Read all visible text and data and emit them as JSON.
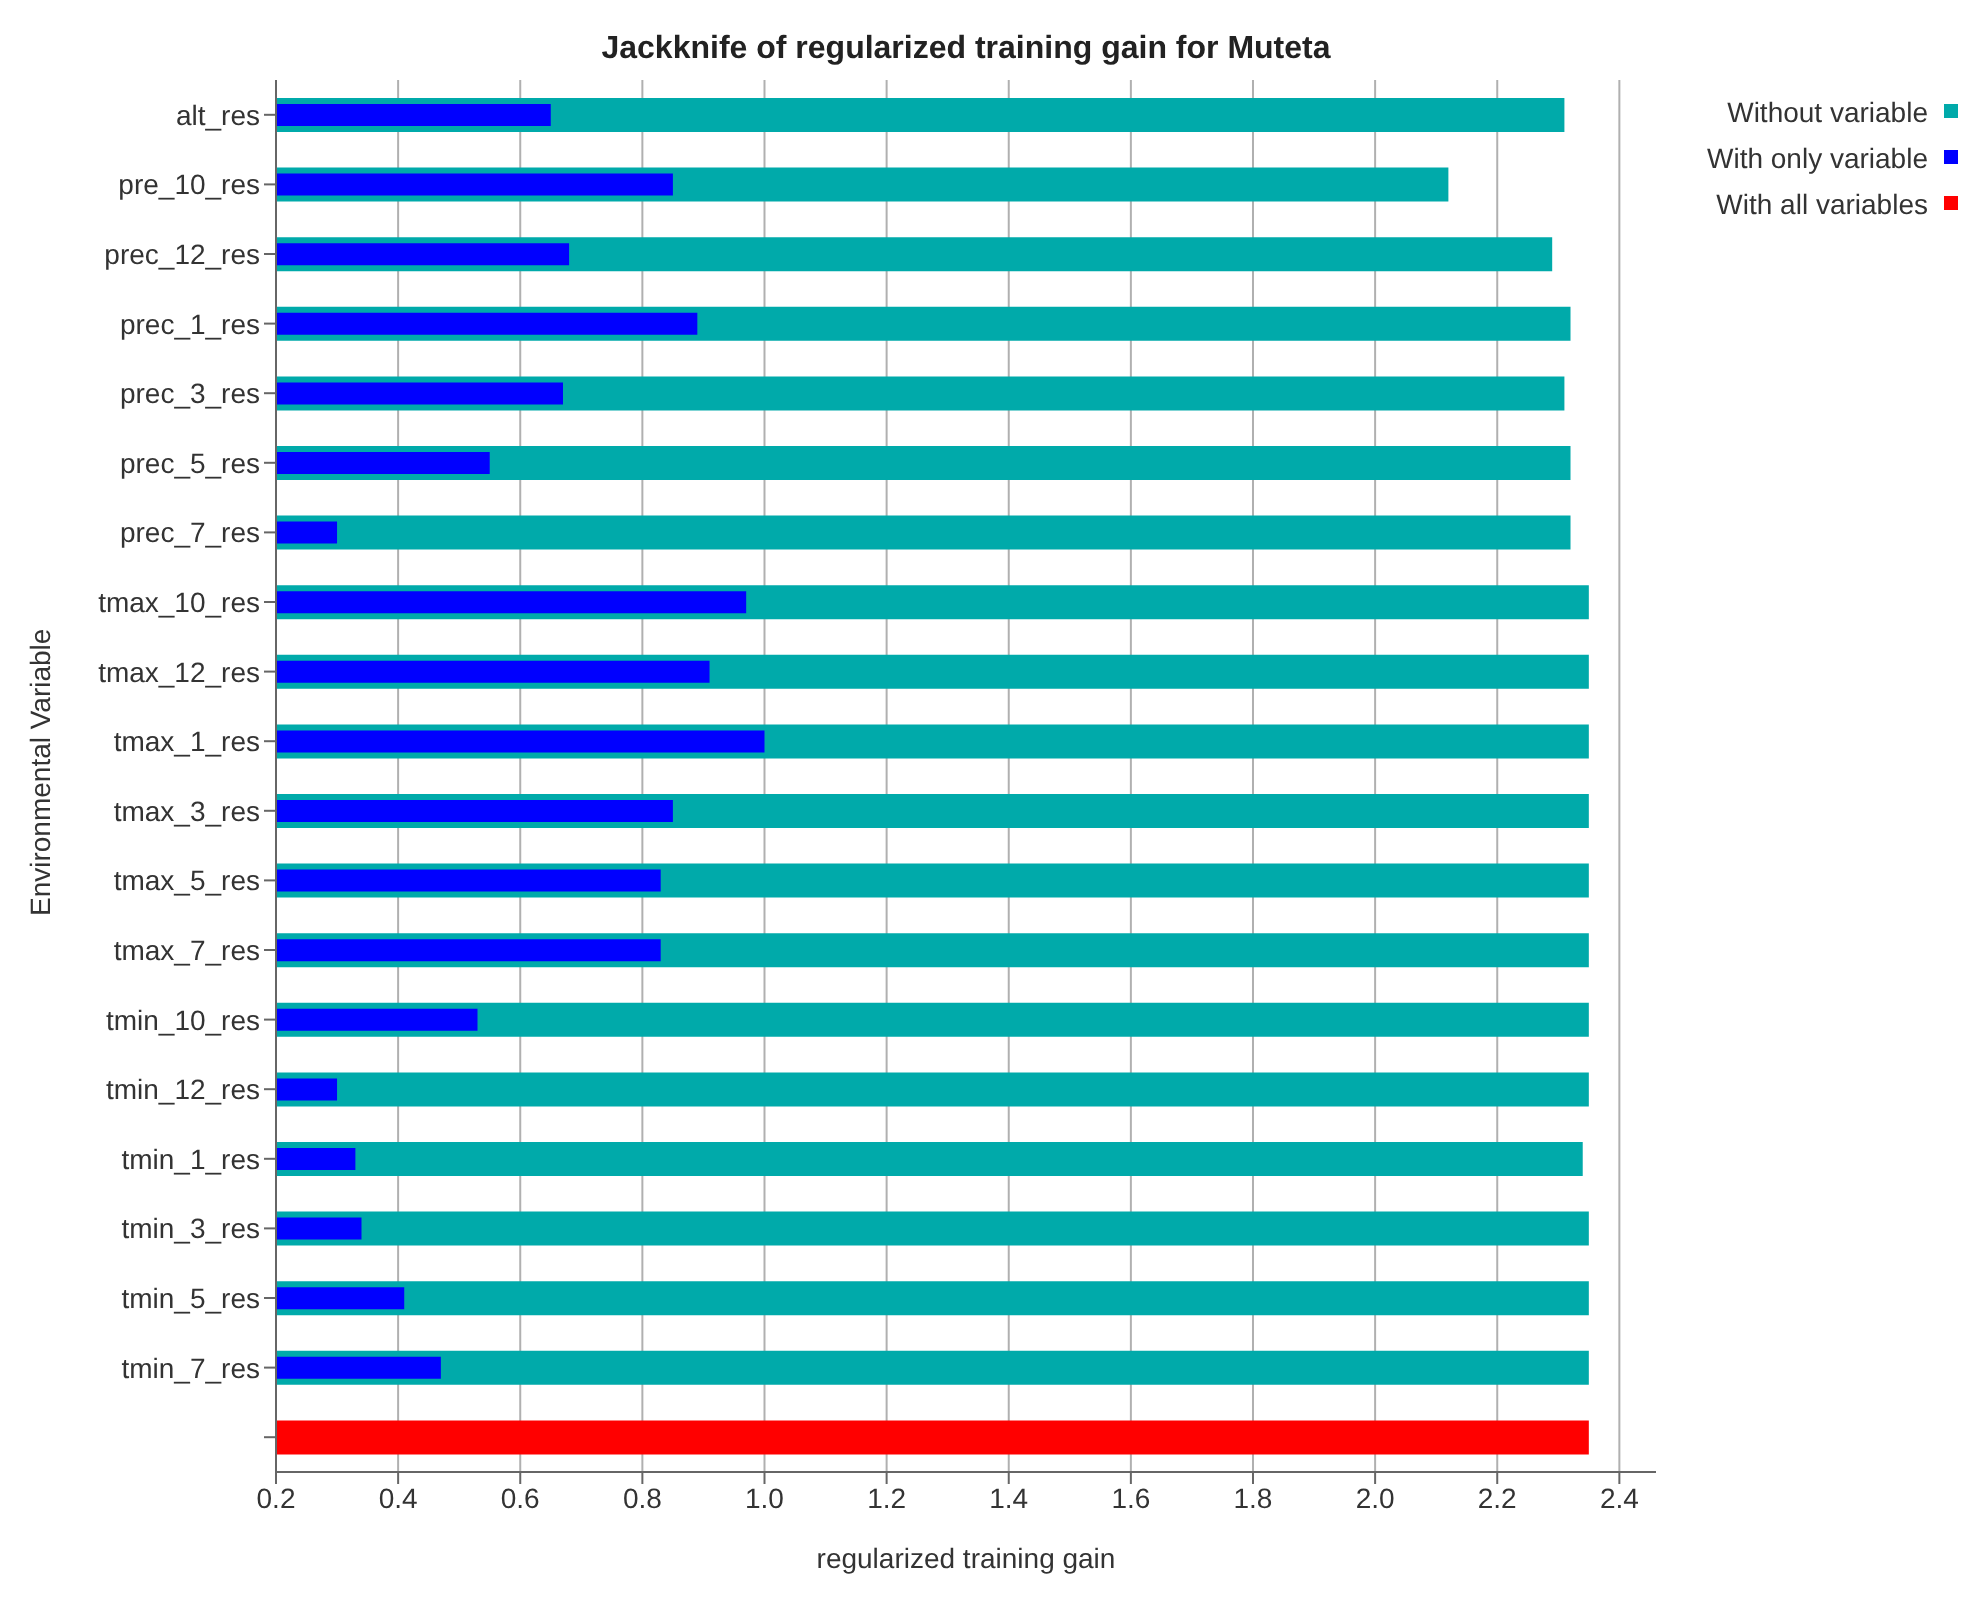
{
  "chart_data": {
    "type": "bar",
    "orientation": "horizontal",
    "title": "Jackknife of regularized training gain for Muteta",
    "xlabel": "regularized training gain",
    "ylabel": "Environmental Variable",
    "categories": [
      "alt_res",
      "pre_10_res",
      "prec_12_res",
      "prec_1_res",
      "prec_3_res",
      "prec_5_res",
      "prec_7_res",
      "tmax_10_res",
      "tmax_12_res",
      "tmax_1_res",
      "tmax_3_res",
      "tmax_5_res",
      "tmax_7_res",
      "tmin_10_res",
      "tmin_12_res",
      "tmin_1_res",
      "tmin_3_res",
      "tmin_5_res",
      "tmin_7_res",
      null
    ],
    "series": [
      {
        "name": "Without variable",
        "color": "#00aaaa",
        "values": [
          2.31,
          2.12,
          2.29,
          2.32,
          2.31,
          2.32,
          2.32,
          2.35,
          2.35,
          2.35,
          2.35,
          2.35,
          2.35,
          2.35,
          2.35,
          2.34,
          2.35,
          2.35,
          2.35,
          null
        ]
      },
      {
        "name": "With only variable",
        "color": "#0000ff",
        "values": [
          0.65,
          0.85,
          0.68,
          0.89,
          0.67,
          0.55,
          0.3,
          0.97,
          0.91,
          1.0,
          0.85,
          0.83,
          0.83,
          0.53,
          0.3,
          0.33,
          0.34,
          0.41,
          0.47,
          null
        ]
      },
      {
        "name": "With all variables",
        "color": "#ff0000",
        "values": [
          null,
          null,
          null,
          null,
          null,
          null,
          null,
          null,
          null,
          null,
          null,
          null,
          null,
          null,
          null,
          null,
          null,
          null,
          null,
          2.35
        ]
      }
    ],
    "xlim": [
      0.2,
      2.46
    ],
    "xticks": [
      {
        "value": 0.2,
        "label": "0.2"
      },
      {
        "value": 0.4,
        "label": "0.4"
      },
      {
        "value": 0.6,
        "label": "0.6"
      },
      {
        "value": 0.8,
        "label": "0.8"
      },
      {
        "value": 1.0,
        "label": "1.0"
      },
      {
        "value": 1.2,
        "label": "1.2"
      },
      {
        "value": 1.4,
        "label": "1.4"
      },
      {
        "value": 1.6,
        "label": "1.6"
      },
      {
        "value": 1.8,
        "label": "1.8"
      },
      {
        "value": 2.0,
        "label": "2.0"
      },
      {
        "value": 2.2,
        "label": "2.2"
      },
      {
        "value": 2.4,
        "label": "2.4"
      }
    ],
    "grid": "x",
    "legend": "top right"
  }
}
